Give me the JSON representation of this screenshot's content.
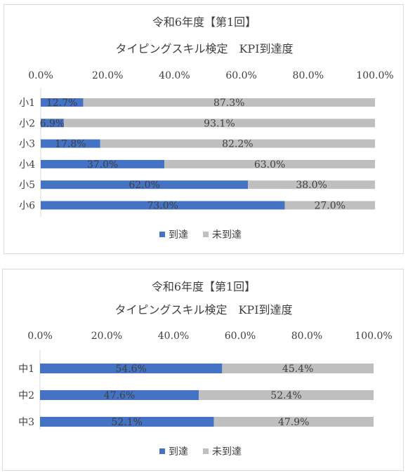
{
  "chart_data": [
    {
      "type": "bar",
      "orientation": "horizontal-stacked-100",
      "title": "令和6年度【第1回】",
      "subtitle": "タイピングスキル検定　KPI到達度",
      "categories": [
        "小1",
        "小2",
        "小3",
        "小4",
        "小5",
        "小6"
      ],
      "series": [
        {
          "name": "到達",
          "color": "#4472c4",
          "values": [
            12.7,
            6.9,
            17.8,
            37.0,
            62.0,
            73.0
          ],
          "labels": [
            "12.7%",
            "6.9%",
            "17.8%",
            "37.0%",
            "62.0%",
            "73.0%"
          ]
        },
        {
          "name": "未到達",
          "color": "#bfbfbf",
          "values": [
            87.3,
            93.1,
            82.2,
            63.0,
            38.0,
            27.0
          ],
          "labels": [
            "87.3%",
            "93.1%",
            "82.2%",
            "63.0%",
            "38.0%",
            "27.0%"
          ]
        }
      ],
      "xticks": [
        "0.0%",
        "20.0%",
        "40.0%",
        "60.0%",
        "80.0%",
        "100.0%"
      ],
      "xlim": [
        0,
        100
      ],
      "axis_position": "top",
      "legend": "bottom",
      "grid": false
    },
    {
      "type": "bar",
      "orientation": "horizontal-stacked-100",
      "title": "令和6年度【第1回】",
      "subtitle": "タイピングスキル検定　KPI到達度",
      "categories": [
        "中1",
        "中2",
        "中3"
      ],
      "series": [
        {
          "name": "到達",
          "color": "#4472c4",
          "values": [
            54.6,
            47.6,
            52.1
          ],
          "labels": [
            "54.6%",
            "47.6%",
            "52.1%"
          ]
        },
        {
          "name": "未到達",
          "color": "#bfbfbf",
          "values": [
            45.4,
            52.4,
            47.9
          ],
          "labels": [
            "45.4%",
            "52.4%",
            "47.9%"
          ]
        }
      ],
      "xticks": [
        "0.0%",
        "20.0%",
        "40.0%",
        "60.0%",
        "80.0%",
        "100.0%"
      ],
      "xlim": [
        0,
        100
      ],
      "axis_position": "top",
      "legend": "bottom",
      "grid": false
    }
  ]
}
